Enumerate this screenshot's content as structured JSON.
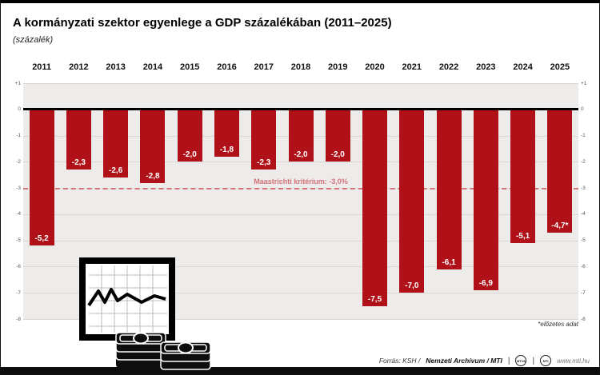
{
  "header": {
    "title": "A kormányzati szektor egyenlege a GDP százalékában (2011–2025)",
    "subtitle": "(százalék)"
  },
  "chart_data": {
    "type": "bar",
    "title": "A kormányzati szektor egyenlege a GDP százalékában (2011–2025)",
    "xlabel": "",
    "ylabel": "százalék",
    "categories": [
      "2011",
      "2012",
      "2013",
      "2014",
      "2015",
      "2016",
      "2017",
      "2018",
      "2019",
      "2020",
      "2021",
      "2022",
      "2023",
      "2024",
      "2025"
    ],
    "values": [
      -5.2,
      -2.3,
      -2.6,
      -2.8,
      -2.0,
      -1.8,
      -2.3,
      -2.0,
      -2.0,
      -7.5,
      -7.0,
      -6.1,
      -6.9,
      -5.1,
      -4.7
    ],
    "labels": [
      "-5,2",
      "-2,3",
      "-2,6",
      "-2,8",
      "-2,0",
      "-1,8",
      "-2,3",
      "-2,0",
      "-2,0",
      "-7,5",
      "-7,0",
      "-6,1",
      "-6,9",
      "-5,1",
      "-4,7*"
    ],
    "ylim": [
      -8,
      1
    ],
    "y_ticks": [
      "+1",
      "0",
      "-1",
      "-2",
      "-3",
      "-4",
      "-5",
      "-6",
      "-7",
      "-8"
    ],
    "grid": true,
    "legend": "none",
    "bar_color": "#b01118",
    "reference_line": {
      "value": -3.0,
      "label": "Maastrichti kritérium: -3,0%",
      "color": "#d4737b"
    }
  },
  "footnote": "*előzetes adat",
  "footer": {
    "source_prefix": "Forrás: KSH /",
    "source_bold": "Nemzeti Archívum / MTI",
    "separator": "|",
    "logo1": "MTVA",
    "logo2": "MTI",
    "website": "www.mti.hu"
  }
}
